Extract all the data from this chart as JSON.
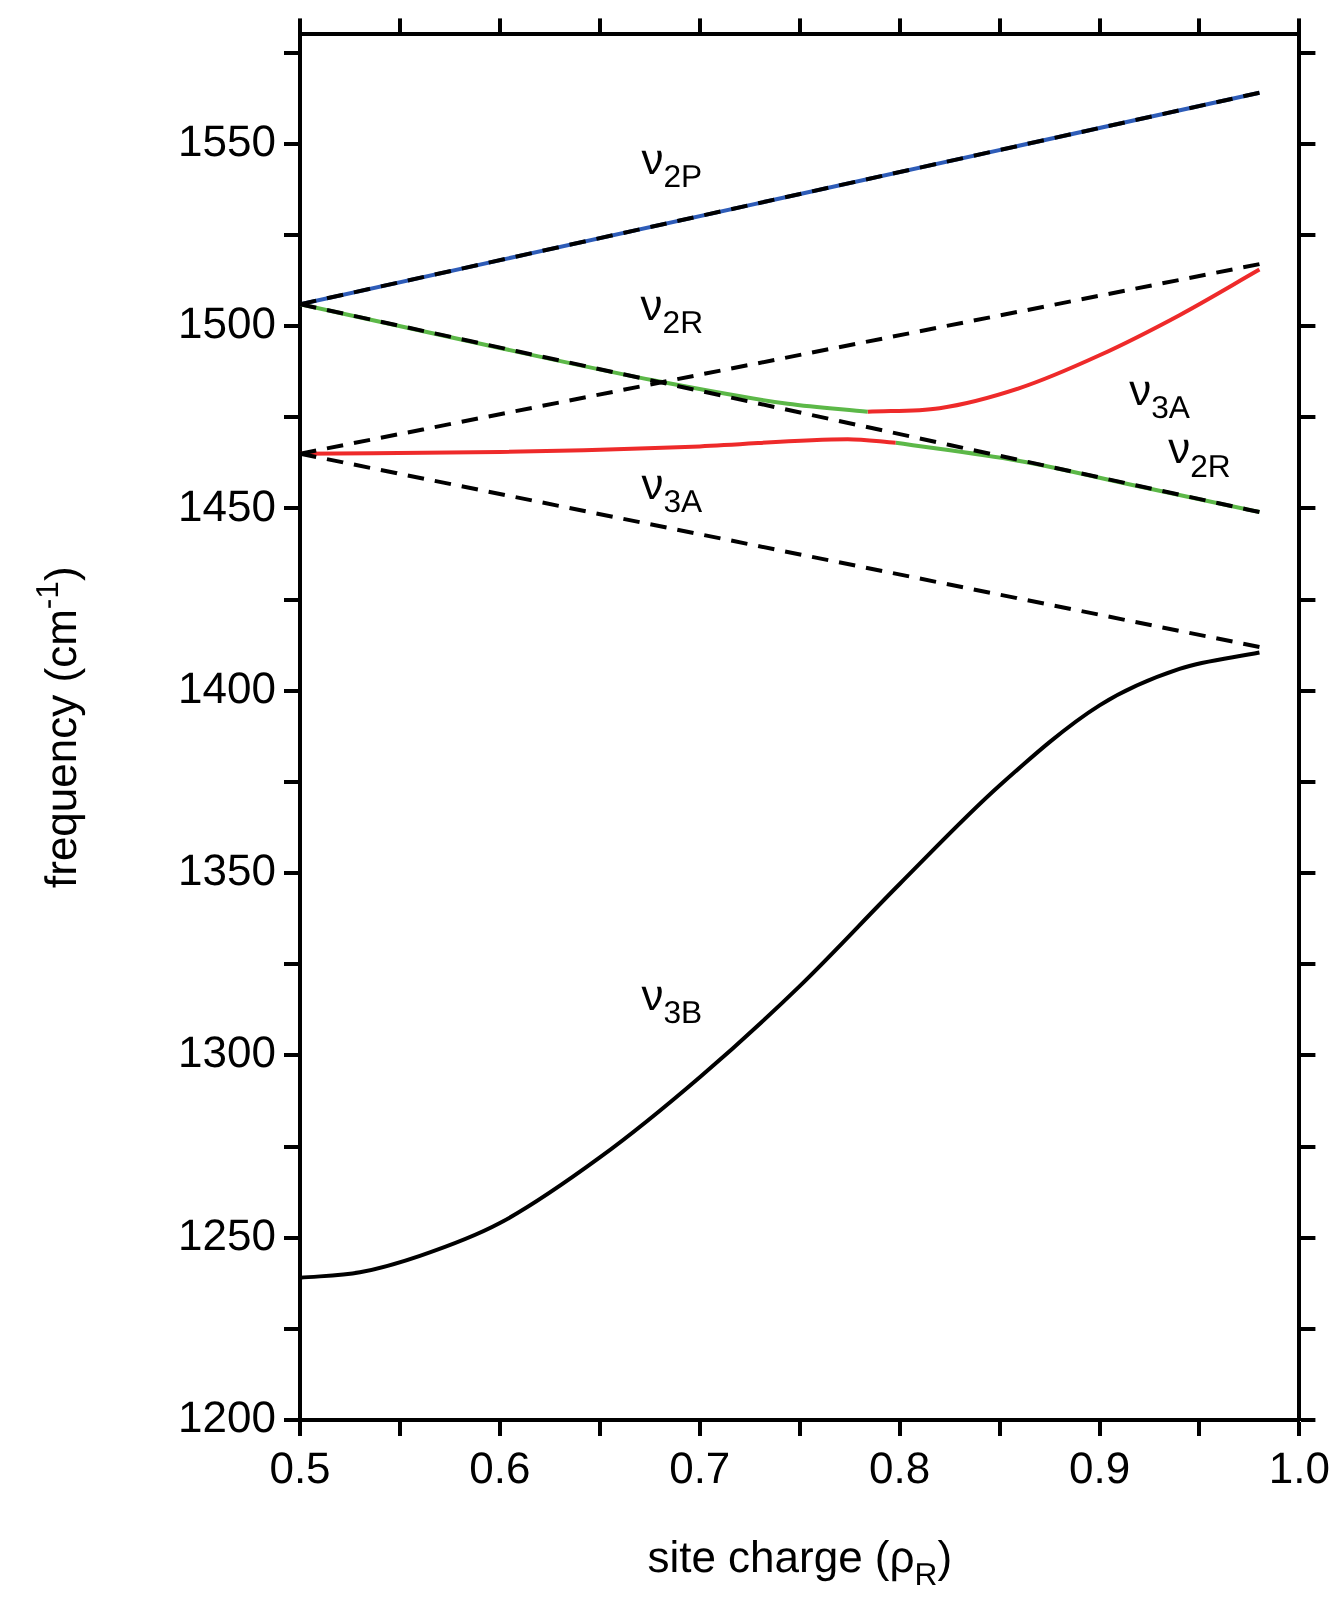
{
  "chart_data": {
    "type": "line",
    "xlabel": "site charge (ρ$_{R}$)",
    "ylabel": "frequency (cm$^{-1}$)",
    "xlim": [
      0.5,
      1.0
    ],
    "ylim": [
      1200,
      1580
    ],
    "xticks": [
      0.5,
      {
        "value": 0.55,
        "label": null
      },
      0.6,
      {
        "value": 0.65,
        "label": null
      },
      0.7,
      {
        "value": 0.75,
        "label": null
      },
      0.8,
      {
        "value": 0.85,
        "label": null
      },
      0.9,
      {
        "value": 0.95,
        "label": null
      },
      {
        "value": 1,
        "label": "1.0"
      }
    ],
    "yticks": [
      1200,
      {
        "value": 1225,
        "label": null
      },
      1250,
      {
        "value": 1275,
        "label": null
      },
      1300,
      {
        "value": 1325,
        "label": null
      },
      1350,
      {
        "value": 1375,
        "label": null
      },
      1400,
      {
        "value": 1425,
        "label": null
      },
      1450,
      {
        "value": 1475,
        "label": null
      },
      1500,
      {
        "value": 1525,
        "label": null
      },
      1550,
      {
        "value": 1575,
        "label": null
      }
    ],
    "grid": false,
    "legend": false,
    "marker": "none",
    "series": [
      {
        "color": "#000000",
        "line_style": "dashed",
        "x": [
          0.5,
          0.98
        ],
        "values": [
          1465,
          1517
        ]
      },
      {
        "color": "#000000",
        "line_style": "dashed",
        "x": [
          0.5,
          0.98
        ],
        "values": [
          1465,
          1412
        ]
      },
      {
        "color": "#000000",
        "line_style": "dashed",
        "x": [
          0.5,
          0.98
        ],
        "values": [
          1506,
          1449
        ]
      },
      {
        "color": "#000000",
        "line_style": "dashed",
        "x": [
          0.5,
          0.98
        ],
        "values": [
          1506,
          1564
        ]
      },
      {
        "name": "ν$_{2P}$",
        "color": "#2e5cb8",
        "line_style": "solid",
        "x": [
          0.5,
          0.98
        ],
        "values": [
          1506,
          1564
        ]
      },
      {
        "name": "ν$_{2R}$",
        "color": "#5cb848",
        "line_style": "solid",
        "x": [
          0.5,
          0.6,
          0.678,
          0.744,
          0.784
        ],
        "values": [
          1506,
          1494,
          1485,
          1478.7,
          1476.5
        ]
      },
      {
        "name": "ν$_{3A}$",
        "color": "#ee2a2a",
        "line_style": "solid",
        "x": [
          0.784,
          0.82,
          0.86,
          0.9,
          0.94,
          0.98
        ],
        "values": [
          1476.5,
          1477.5,
          1483,
          1492,
          1503,
          1515.5
        ]
      },
      {
        "name": "ν$_{3A}$",
        "color": "#ee2a2a",
        "line_style": "solid",
        "x": [
          0.5,
          0.6,
          0.7,
          0.774,
          0.798
        ],
        "values": [
          1465,
          1465.5,
          1467,
          1469,
          1468
        ]
      },
      {
        "name": "ν$_{2R}$",
        "color": "#5cb848",
        "line_style": "solid",
        "x": [
          0.798,
          0.86,
          0.92,
          0.98
        ],
        "values": [
          1468,
          1463,
          1456,
          1449
        ]
      },
      {
        "name": "ν$_{3B}$",
        "color": "#000000",
        "line_style": "solid",
        "x": [
          0.5,
          0.53,
          0.56,
          0.6,
          0.65,
          0.7,
          0.75,
          0.8,
          0.85,
          0.9,
          0.94,
          0.98
        ],
        "values": [
          1239,
          1240.5,
          1245,
          1254,
          1272,
          1294,
          1319,
          1347,
          1374,
          1396,
          1406,
          1410.5
        ]
      }
    ]
  }
}
